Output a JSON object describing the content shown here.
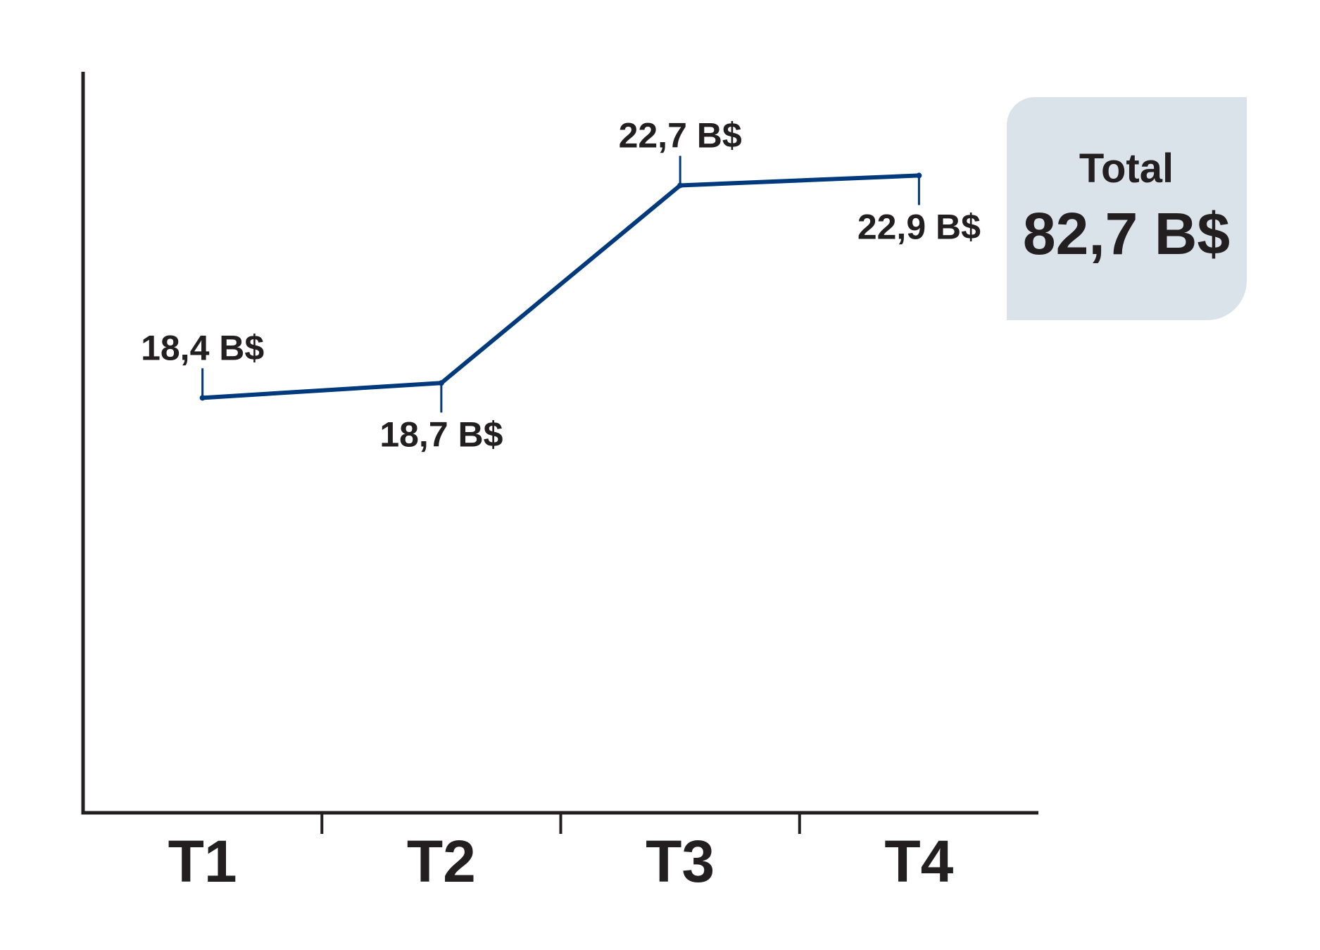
{
  "chart_data": {
    "type": "line",
    "categories": [
      "T1",
      "T2",
      "T3",
      "T4"
    ],
    "series": [
      {
        "values": [
          18.4,
          18.7,
          22.7,
          22.9
        ],
        "labels": [
          "18,4 B$",
          "18,7 B$",
          "22,7 B$",
          "22,9 B$"
        ]
      }
    ],
    "title": "",
    "xlabel": "",
    "ylabel": "",
    "ylim": [
      10,
      25
    ],
    "grid": false,
    "line_color": "#003a7d",
    "axis_color": "#231f20"
  },
  "total_box": {
    "title": "Total",
    "value": "82,7 B$",
    "background": "#dae2ea"
  }
}
